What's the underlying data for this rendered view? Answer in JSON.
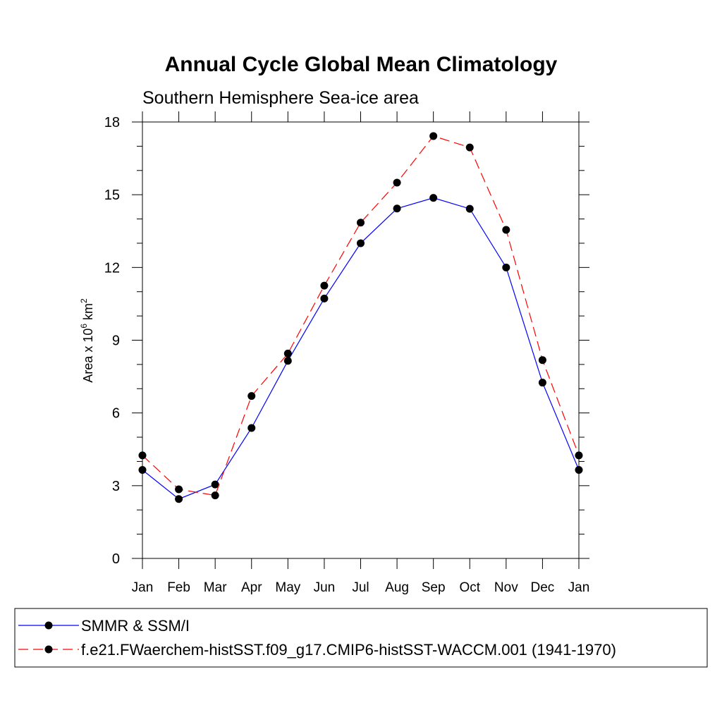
{
  "chart_data": {
    "type": "line",
    "title": "Annual Cycle Global Mean Climatology",
    "subtitle": "Southern Hemisphere Sea-ice area",
    "ylabel": {
      "prefix": "Area x 10",
      "exp": "6",
      "unit": " km",
      "unit_exp": "2"
    },
    "xlabel": "",
    "categories": [
      "Jan",
      "Feb",
      "Mar",
      "Apr",
      "May",
      "Jun",
      "Jul",
      "Aug",
      "Sep",
      "Oct",
      "Nov",
      "Dec",
      "Jan"
    ],
    "ylim": [
      0,
      18
    ],
    "yticks": [
      "0",
      "3",
      "6",
      "9",
      "12",
      "15",
      "18"
    ],
    "series": [
      {
        "name": "SMMR & SSM/I",
        "color": "#0000ff",
        "dash": "solid",
        "marker": "filled-circle",
        "values": [
          3.65,
          2.45,
          3.05,
          5.38,
          8.15,
          10.72,
          13.0,
          14.43,
          14.87,
          14.42,
          12.0,
          7.25,
          3.65
        ]
      },
      {
        "name": "f.e21.FWaerchem-histSST.f09_g17.CMIP6-histSST-WACCM.001 (1941-1970)",
        "color": "#ff0000",
        "dash": "dashed",
        "marker": "filled-circle",
        "values": [
          4.25,
          2.85,
          2.6,
          6.7,
          8.45,
          11.25,
          13.85,
          15.5,
          17.42,
          16.95,
          13.55,
          8.18,
          4.25
        ]
      }
    ],
    "legend_position": "bottom"
  }
}
